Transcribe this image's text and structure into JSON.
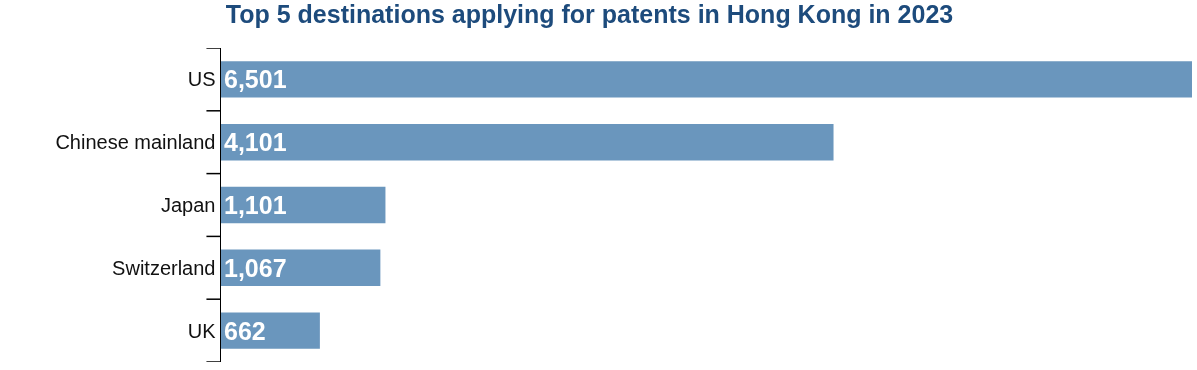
{
  "chart_data": {
    "type": "bar",
    "orientation": "horizontal",
    "title": "Top 5 destinations applying for patents in Hong Kong in 2023",
    "categories": [
      "US",
      "Chinese mainland",
      "Japan",
      "Switzerland",
      "UK"
    ],
    "values": [
      6501,
      4101,
      1101,
      1067,
      662
    ],
    "value_labels": [
      "6,501",
      "4,101",
      "1,101",
      "1,067",
      "662"
    ],
    "color": "#6a96bd"
  }
}
